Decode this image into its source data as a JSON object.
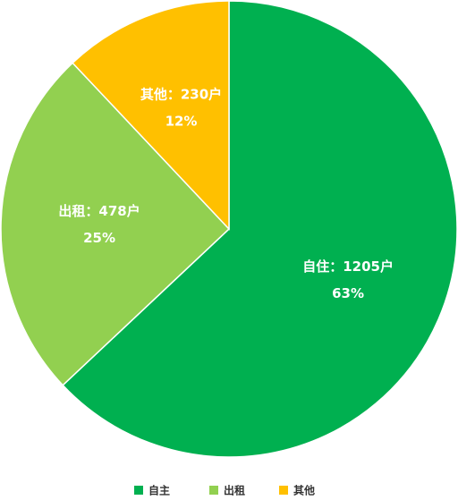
{
  "chart_data": {
    "type": "pie",
    "categories": [
      "自主",
      "出租",
      "其他"
    ],
    "values": [
      1205,
      478,
      230
    ],
    "value_labels": [
      "自住：1205户",
      "出租：478户",
      "其他：230户"
    ],
    "percentages": [
      63,
      25,
      12
    ],
    "percentage_labels": [
      "63%",
      "25%",
      "12%"
    ],
    "colors": [
      "#00b050",
      "#92d050",
      "#ffc000"
    ],
    "legend": "bottom"
  }
}
